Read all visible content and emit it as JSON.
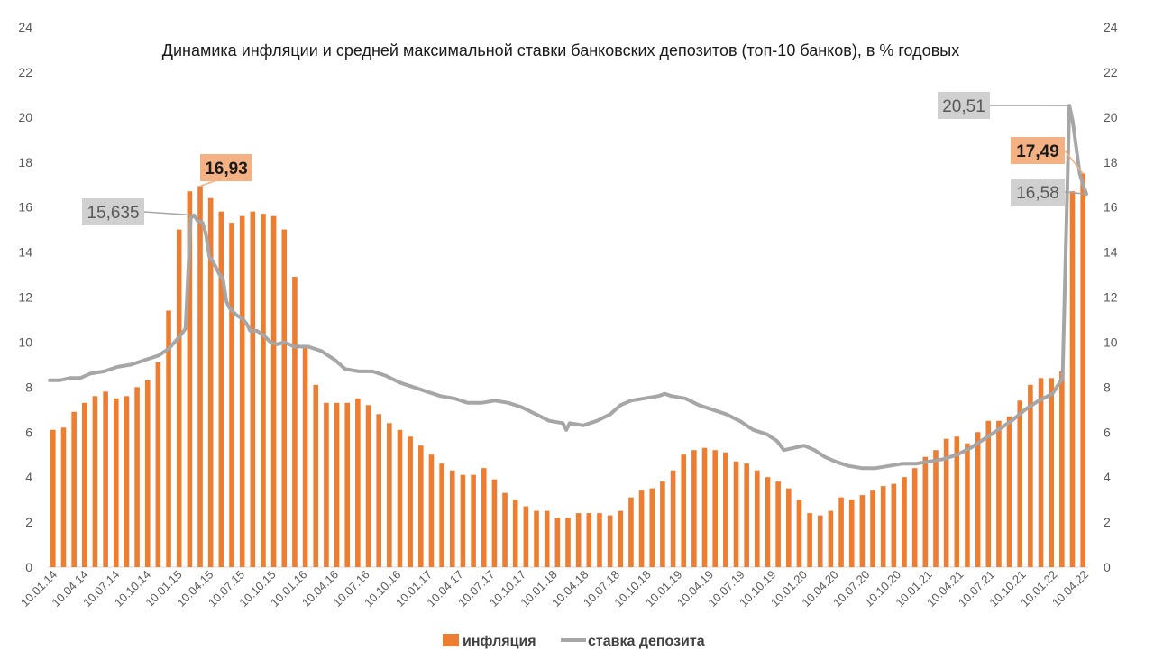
{
  "chart_data": {
    "type": "bar",
    "title": "Динамика инфляции и средней максимальной ставки банковских депозитов (топ-10 банков), в % годовых",
    "ylim": [
      0,
      24
    ],
    "yticks": [
      0,
      2,
      4,
      6,
      8,
      10,
      12,
      14,
      16,
      18,
      20,
      22,
      24
    ],
    "x_tick_labels": [
      "10.01.14",
      "10.04.14",
      "10.07.14",
      "10.10.14",
      "10.01.15",
      "10.04.15",
      "10.07.15",
      "10.10.15",
      "10.01.16",
      "10.04.16",
      "10.07.16",
      "10.10.16",
      "10.01.17",
      "10.04.17",
      "10.07.17",
      "10.10.17",
      "10.01.18",
      "10.04.18",
      "10.07.18",
      "10.10.18",
      "10.01.19",
      "10.04.19",
      "10.07.19",
      "10.10.19",
      "10.01.20",
      "10.04.20",
      "10.07.20",
      "10.10.20",
      "10.01.21",
      "10.04.21",
      "10.07.21",
      "10.10.21",
      "10.01.22",
      "10.04.22"
    ],
    "grid": false,
    "legend_position": "bottom",
    "series": [
      {
        "name": "инфляция",
        "type": "bar",
        "color": "#ed7d31",
        "values": [
          6.1,
          6.2,
          6.9,
          7.3,
          7.6,
          7.8,
          7.5,
          7.6,
          8.0,
          8.3,
          9.1,
          11.4,
          15.0,
          16.7,
          16.93,
          16.4,
          15.8,
          15.3,
          15.6,
          15.8,
          15.7,
          15.6,
          15.0,
          12.9,
          9.8,
          8.1,
          7.3,
          7.3,
          7.3,
          7.5,
          7.2,
          6.8,
          6.4,
          6.1,
          5.8,
          5.4,
          5.0,
          4.6,
          4.3,
          4.1,
          4.1,
          4.4,
          3.9,
          3.3,
          3.0,
          2.7,
          2.5,
          2.5,
          2.2,
          2.2,
          2.4,
          2.4,
          2.4,
          2.3,
          2.5,
          3.1,
          3.4,
          3.5,
          3.8,
          4.3,
          5.0,
          5.2,
          5.3,
          5.2,
          5.1,
          4.7,
          4.6,
          4.3,
          4.0,
          3.8,
          3.5,
          3.0,
          2.4,
          2.3,
          2.5,
          3.1,
          3.0,
          3.2,
          3.4,
          3.6,
          3.7,
          4.0,
          4.4,
          4.9,
          5.2,
          5.7,
          5.8,
          5.5,
          6.0,
          6.5,
          6.5,
          6.7,
          7.4,
          8.1,
          8.4,
          8.4,
          8.7,
          16.7,
          17.49
        ]
      },
      {
        "name": "ставка депозита",
        "type": "line",
        "color": "#a6a6a6",
        "points": [
          [
            0,
            8.3
          ],
          [
            3,
            8.3
          ],
          [
            6,
            8.4
          ],
          [
            9,
            8.4
          ],
          [
            12,
            8.6
          ],
          [
            16,
            8.7
          ],
          [
            20,
            8.9
          ],
          [
            24,
            9.0
          ],
          [
            28,
            9.2
          ],
          [
            32,
            9.4
          ],
          [
            35,
            9.7
          ],
          [
            38,
            10.2
          ],
          [
            40,
            10.6
          ],
          [
            41.5,
            15.5
          ],
          [
            42.5,
            15.635
          ],
          [
            43.5,
            15.4
          ],
          [
            45,
            15.3
          ],
          [
            46,
            14.8
          ],
          [
            47,
            13.8
          ],
          [
            48,
            13.6
          ],
          [
            50,
            13.0
          ],
          [
            51,
            12.8
          ],
          [
            52,
            11.8
          ],
          [
            53,
            11.5
          ],
          [
            55,
            11.2
          ],
          [
            57,
            11.0
          ],
          [
            58,
            10.8
          ],
          [
            59,
            10.5
          ],
          [
            61,
            10.5
          ],
          [
            63,
            10.3
          ],
          [
            65,
            10.0
          ],
          [
            67,
            9.9
          ],
          [
            69,
            10.0
          ],
          [
            72,
            9.8
          ],
          [
            76,
            9.8
          ],
          [
            80,
            9.6
          ],
          [
            84,
            9.2
          ],
          [
            87,
            8.8
          ],
          [
            91,
            8.7
          ],
          [
            95,
            8.7
          ],
          [
            99,
            8.5
          ],
          [
            103,
            8.2
          ],
          [
            107,
            8.0
          ],
          [
            111,
            7.8
          ],
          [
            115,
            7.6
          ],
          [
            119,
            7.5
          ],
          [
            123,
            7.3
          ],
          [
            127,
            7.3
          ],
          [
            131,
            7.4
          ],
          [
            135,
            7.3
          ],
          [
            139,
            7.1
          ],
          [
            143,
            6.8
          ],
          [
            147,
            6.5
          ],
          [
            151,
            6.4
          ],
          [
            152,
            6.1
          ],
          [
            153,
            6.4
          ],
          [
            157,
            6.3
          ],
          [
            161,
            6.5
          ],
          [
            165,
            6.8
          ],
          [
            168,
            7.2
          ],
          [
            171,
            7.4
          ],
          [
            175,
            7.5
          ],
          [
            179,
            7.6
          ],
          [
            181,
            7.7
          ],
          [
            183,
            7.6
          ],
          [
            187,
            7.5
          ],
          [
            191,
            7.2
          ],
          [
            195,
            7.0
          ],
          [
            199,
            6.8
          ],
          [
            203,
            6.5
          ],
          [
            207,
            6.1
          ],
          [
            211,
            5.9
          ],
          [
            214,
            5.6
          ],
          [
            216,
            5.2
          ],
          [
            219,
            5.3
          ],
          [
            222,
            5.4
          ],
          [
            225,
            5.2
          ],
          [
            228,
            4.9
          ],
          [
            231,
            4.7
          ],
          [
            235,
            4.5
          ],
          [
            239,
            4.4
          ],
          [
            243,
            4.4
          ],
          [
            247,
            4.5
          ],
          [
            251,
            4.6
          ],
          [
            255,
            4.6
          ],
          [
            259,
            4.7
          ],
          [
            263,
            4.8
          ],
          [
            267,
            5.0
          ],
          [
            271,
            5.3
          ],
          [
            275,
            5.7
          ],
          [
            279,
            6.1
          ],
          [
            283,
            6.5
          ],
          [
            287,
            7.0
          ],
          [
            291,
            7.4
          ],
          [
            295,
            7.7
          ],
          [
            298,
            8.4
          ],
          [
            300,
            20.51
          ],
          [
            301,
            19.8
          ],
          [
            303,
            17.5
          ],
          [
            304,
            17.0
          ],
          [
            305,
            16.58
          ]
        ],
        "x_max": 305
      }
    ],
    "annotations": [
      {
        "text": "16,93",
        "series": "инфляция",
        "style": "orange",
        "bold": true
      },
      {
        "text": "15,635",
        "series": "ставка депозита",
        "style": "gray",
        "bold": false
      },
      {
        "text": "20,51",
        "series": "ставка депозита",
        "style": "gray",
        "bold": false
      },
      {
        "text": "17,49",
        "series": "инфляция",
        "style": "orange",
        "bold": true
      },
      {
        "text": "16,58",
        "series": "ставка депозита",
        "style": "gray",
        "bold": false
      }
    ]
  }
}
